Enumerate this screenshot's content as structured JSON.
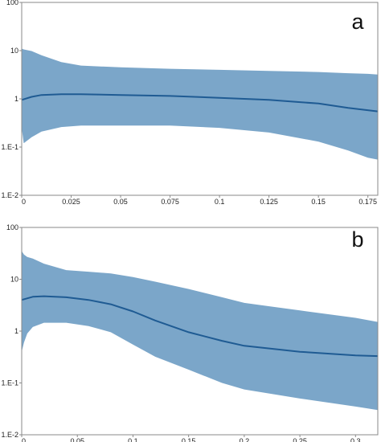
{
  "chart_data": [
    {
      "type": "area",
      "panel_label": "a",
      "x_scale": "linear",
      "y_scale": "log",
      "xlim": [
        0,
        0.18
      ],
      "ylim": [
        0.01,
        100
      ],
      "x_ticks": [
        0,
        0.025,
        0.05,
        0.075,
        0.1,
        0.125,
        0.15,
        0.175
      ],
      "x_tick_labels": [
        "0",
        "0.025",
        "0.05",
        "0.075",
        "0.1",
        "0.125",
        "0.15",
        "0.175"
      ],
      "y_ticks": [
        0.01,
        0.1,
        1,
        10,
        100
      ],
      "y_tick_labels": [
        "1.E-2",
        "1.E-1",
        "1",
        "10",
        "100"
      ],
      "grid": false,
      "series": [
        {
          "kind": "band",
          "x": [
            0,
            0.001,
            0.005,
            0.01,
            0.02,
            0.03,
            0.05,
            0.075,
            0.1,
            0.125,
            0.15,
            0.165,
            0.175,
            0.18
          ],
          "upper": [
            11,
            10.6,
            9.8,
            8.0,
            5.8,
            4.9,
            4.5,
            4.2,
            4.0,
            3.8,
            3.6,
            3.4,
            3.3,
            3.2
          ],
          "lower": [
            0.25,
            0.12,
            0.16,
            0.21,
            0.26,
            0.28,
            0.28,
            0.28,
            0.25,
            0.2,
            0.13,
            0.085,
            0.06,
            0.055
          ]
        },
        {
          "kind": "line",
          "x": [
            0,
            0.005,
            0.01,
            0.02,
            0.03,
            0.05,
            0.075,
            0.1,
            0.125,
            0.15,
            0.165,
            0.18
          ],
          "y": [
            0.95,
            1.1,
            1.2,
            1.25,
            1.25,
            1.2,
            1.15,
            1.05,
            0.95,
            0.8,
            0.65,
            0.55
          ]
        }
      ],
      "colors": {
        "band": "#7ba6c9",
        "line": "#1f5b93",
        "frame": "#8a8a8a"
      }
    },
    {
      "type": "area",
      "panel_label": "b",
      "x_scale": "linear",
      "y_scale": "log",
      "xlim": [
        0,
        0.32
      ],
      "ylim": [
        0.01,
        100
      ],
      "x_ticks": [
        0,
        0.05,
        0.1,
        0.15,
        0.2,
        0.25,
        0.3
      ],
      "x_tick_labels": [
        "0",
        "0.05",
        "0.1",
        "0.15",
        "0.2",
        "0.25",
        "0.3"
      ],
      "y_ticks": [
        0.01,
        0.1,
        1,
        10,
        100
      ],
      "y_tick_labels": [
        "1.E-2",
        "1.E-1",
        "1",
        "10",
        "100"
      ],
      "grid": false,
      "series": [
        {
          "kind": "band",
          "x": [
            0,
            0.002,
            0.005,
            0.01,
            0.02,
            0.04,
            0.06,
            0.08,
            0.1,
            0.12,
            0.15,
            0.18,
            0.2,
            0.25,
            0.3,
            0.32
          ],
          "upper": [
            35,
            30,
            27,
            25,
            20,
            15,
            14,
            13,
            11,
            9,
            6.5,
            4.5,
            3.5,
            2.5,
            1.8,
            1.5
          ],
          "lower": [
            0.4,
            0.6,
            0.9,
            1.2,
            1.45,
            1.45,
            1.25,
            0.95,
            0.55,
            0.32,
            0.18,
            0.1,
            0.075,
            0.05,
            0.035,
            0.03
          ]
        },
        {
          "kind": "line",
          "x": [
            0,
            0.01,
            0.02,
            0.04,
            0.06,
            0.08,
            0.1,
            0.12,
            0.15,
            0.18,
            0.2,
            0.25,
            0.3,
            0.32
          ],
          "y": [
            4,
            4.6,
            4.7,
            4.5,
            4.0,
            3.3,
            2.4,
            1.6,
            0.95,
            0.65,
            0.52,
            0.4,
            0.34,
            0.33
          ]
        }
      ],
      "colors": {
        "band": "#7ba6c9",
        "line": "#1f5b93",
        "frame": "#8a8a8a"
      }
    }
  ]
}
